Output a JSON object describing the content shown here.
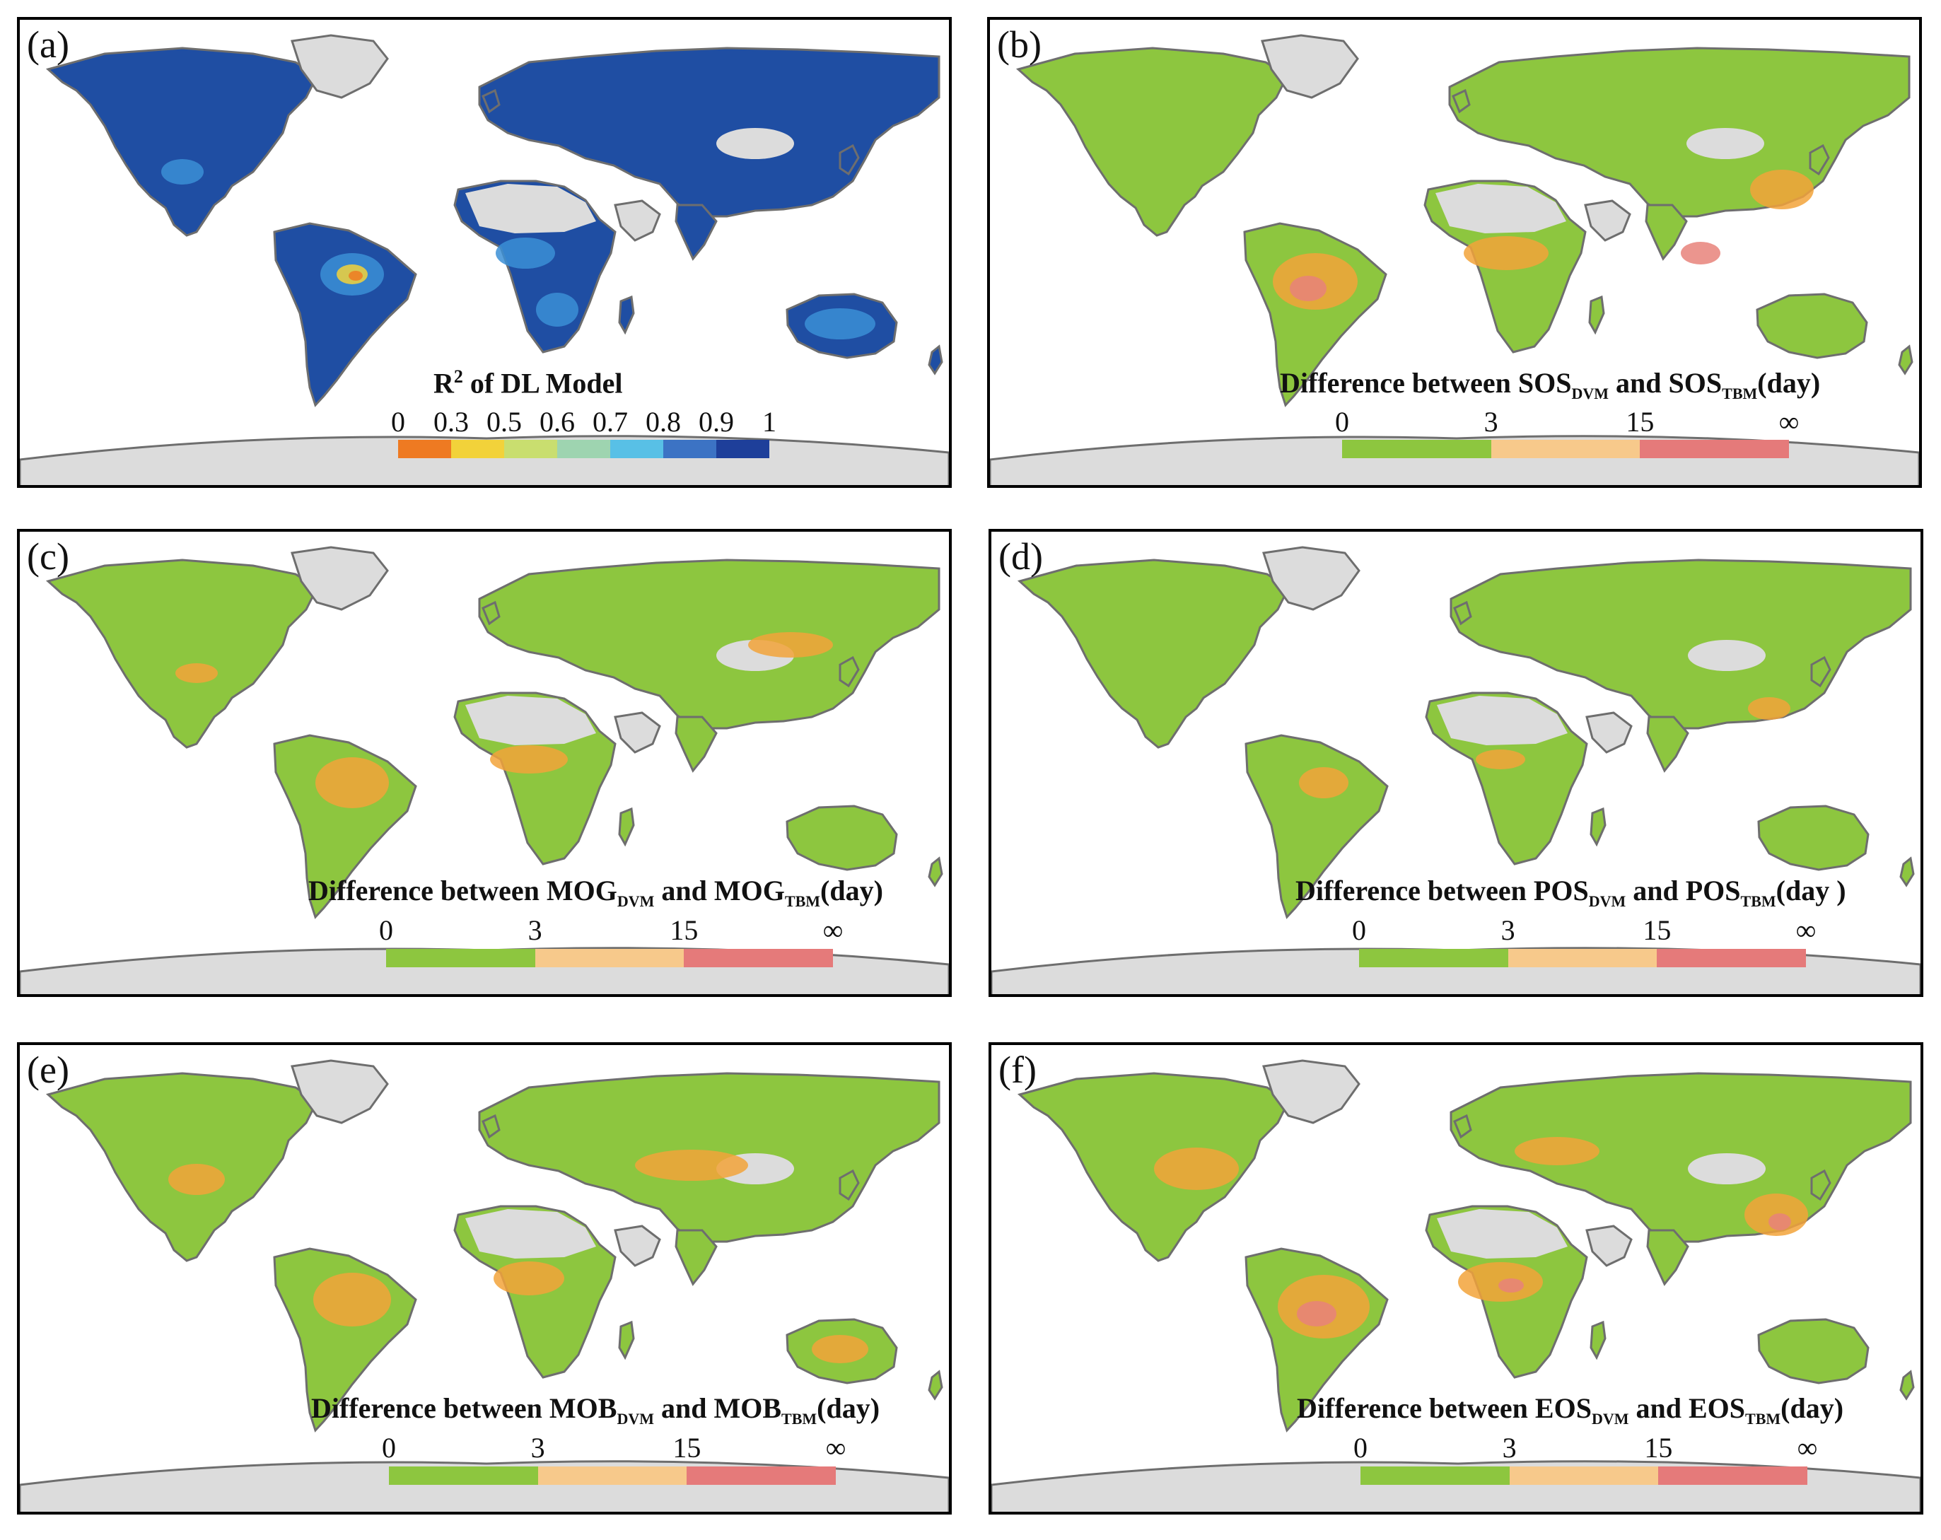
{
  "colors": {
    "land_gray": "#dcdcdc",
    "coast": "#6e6e6e",
    "sea": "#ffffff"
  },
  "panels": [
    {
      "id": "a",
      "label": "(a)",
      "title_base": "R",
      "title_sup": "2",
      "title_rest": " of DL Model",
      "ticks": [
        "0",
        "0.3",
        "0.5",
        "0.6",
        "0.7",
        "0.8",
        "0.9",
        "1"
      ],
      "bar_colors": [
        "#ee7a22",
        "#f2d23a",
        "#c9de6f",
        "#9ed4b0",
        "#58c0e6",
        "#3c73c4",
        "#1e3f9a"
      ],
      "dominant_color": "#1f4ea3",
      "accent_colors": [
        "#3b8fd6",
        "#f2d23a",
        "#ee7a22"
      ]
    },
    {
      "id": "b",
      "label": "(b)",
      "title_pre": "Difference between SOS",
      "sub1": "DVM",
      "title_mid": " and SOS",
      "sub2": "TBM",
      "title_post": "(day)",
      "ticks": [
        "0",
        "3",
        "15",
        "∞"
      ],
      "bar_colors": [
        "#8dc63f",
        "#f7c98b",
        "#e57a7a"
      ],
      "dominant_color": "#8dc63f",
      "accent_colors": [
        "#f2a33a",
        "#e8837a"
      ]
    },
    {
      "id": "c",
      "label": "(c)",
      "title_pre": "Difference between MOG",
      "sub1": "DVM",
      "title_mid": " and MOG",
      "sub2": "TBM",
      "title_post": "(day)",
      "ticks": [
        "0",
        "3",
        "15",
        "∞"
      ],
      "bar_colors": [
        "#8dc63f",
        "#f7c98b",
        "#e57a7a"
      ],
      "dominant_color": "#8dc63f",
      "accent_colors": [
        "#f2a33a"
      ]
    },
    {
      "id": "d",
      "label": "(d)",
      "title_pre": "Difference between POS",
      "sub1": "DVM",
      "title_mid": " and POS",
      "sub2": "TBM",
      "title_post": "(day )",
      "ticks": [
        "0",
        "3",
        "15",
        "∞"
      ],
      "bar_colors": [
        "#8dc63f",
        "#f7c98b",
        "#e57a7a"
      ],
      "dominant_color": "#8dc63f",
      "accent_colors": [
        "#f2a33a"
      ]
    },
    {
      "id": "e",
      "label": "(e)",
      "title_pre": "Difference between MOB",
      "sub1": "DVM",
      "title_mid": " and MOB",
      "sub2": "TBM",
      "title_post": "(day)",
      "ticks": [
        "0",
        "3",
        "15",
        "∞"
      ],
      "bar_colors": [
        "#8dc63f",
        "#f7c98b",
        "#e57a7a"
      ],
      "dominant_color": "#8dc63f",
      "accent_colors": [
        "#f2a33a"
      ]
    },
    {
      "id": "f",
      "label": "(f)",
      "title_pre": "Difference between EOS",
      "sub1": "DVM",
      "title_mid": " and EOS",
      "sub2": "TBM",
      "title_post": "(day)",
      "ticks": [
        "0",
        "3",
        "15",
        "∞"
      ],
      "bar_colors": [
        "#8dc63f",
        "#f7c98b",
        "#e57a7a"
      ],
      "dominant_color": "#8dc63f",
      "accent_colors": [
        "#f2a33a",
        "#e8837a"
      ]
    }
  ]
}
